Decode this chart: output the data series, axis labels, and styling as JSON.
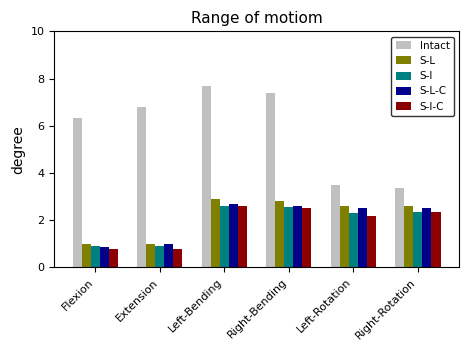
{
  "title": "Range of motiom",
  "ylabel": "degree",
  "ylim": [
    0,
    10
  ],
  "yticks": [
    0,
    2,
    4,
    6,
    8,
    10
  ],
  "categories": [
    "Flexion",
    "Extension",
    "Left-Bending",
    "Right-Bending",
    "Left-Rotation",
    "Right-Rotation"
  ],
  "series": {
    "Intact": [
      6.35,
      6.8,
      7.7,
      7.4,
      3.5,
      3.35
    ],
    "S-L": [
      1.0,
      1.0,
      2.9,
      2.8,
      2.6,
      2.6
    ],
    "S-l": [
      0.9,
      0.9,
      2.6,
      2.55,
      2.3,
      2.35
    ],
    "S-L-C": [
      0.85,
      1.0,
      2.7,
      2.6,
      2.5,
      2.5
    ],
    "S-I-C": [
      0.8,
      0.8,
      2.6,
      2.5,
      2.2,
      2.35
    ]
  },
  "colors": {
    "Intact": "#c0c0c0",
    "S-L": "#808000",
    "S-l": "#008080",
    "S-L-C": "#00008b",
    "S-I-C": "#8b0000"
  },
  "bar_width": 0.14,
  "legend_loc": "upper right",
  "figsize": [
    4.7,
    3.52
  ],
  "dpi": 100
}
